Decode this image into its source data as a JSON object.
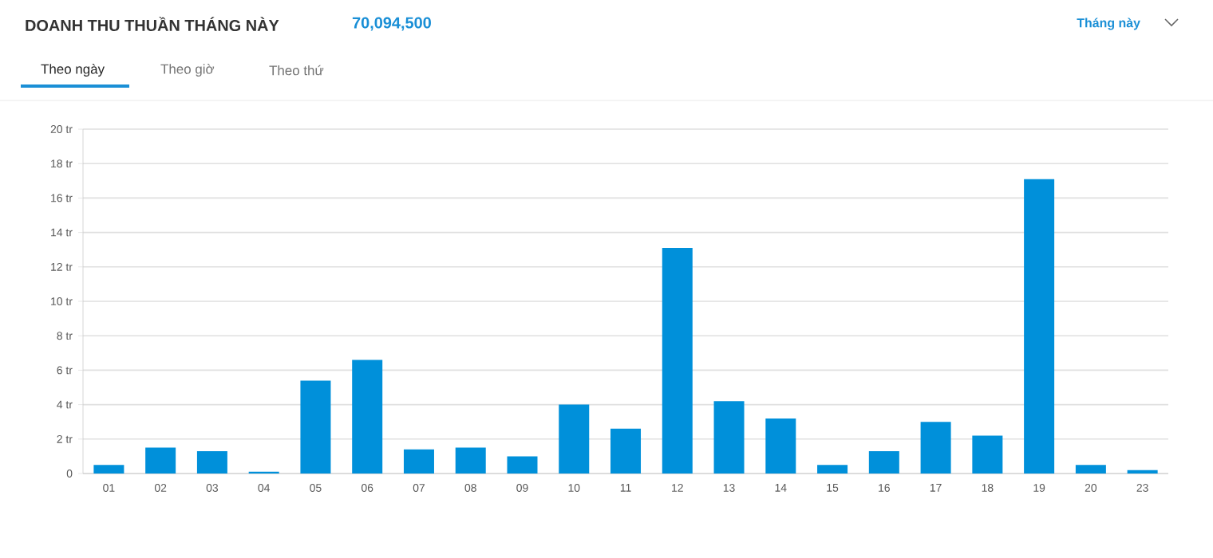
{
  "chart_data": {
    "type": "bar",
    "title": "DOANH THU THUẦN THÁNG NÀY",
    "subtitle": "70,094,500",
    "annotations": [
      "Theo ngày",
      "Theo giờ",
      "Theo thứ",
      "Tháng này"
    ],
    "categories": [
      "01",
      "02",
      "03",
      "04",
      "05",
      "06",
      "07",
      "08",
      "09",
      "10",
      "11",
      "12",
      "13",
      "14",
      "15",
      "16",
      "17",
      "18",
      "19",
      "20",
      "23"
    ],
    "values": [
      0.5,
      1.5,
      1.3,
      0.1,
      5.4,
      6.6,
      1.4,
      1.5,
      1.0,
      4.0,
      2.6,
      13.1,
      4.2,
      3.2,
      0.5,
      1.3,
      3.0,
      2.2,
      17.1,
      0.5,
      0.2
    ],
    "color": "#0090da",
    "ylim": [
      0,
      20
    ],
    "yticks": [
      0,
      {
        "value": 2,
        "label": "2 tr"
      },
      {
        "value": 4,
        "label": "4 tr"
      },
      {
        "value": 6,
        "label": "6 tr"
      },
      {
        "value": 8,
        "label": "8 tr"
      },
      {
        "value": 10,
        "label": "10 tr"
      },
      {
        "value": 12,
        "label": "12 tr"
      },
      {
        "value": 14,
        "label": "14 tr"
      },
      {
        "value": 16,
        "label": "16 tr"
      },
      {
        "value": 18,
        "label": "18 tr"
      },
      {
        "value": 20,
        "label": "20 tr"
      }
    ],
    "grid": "y"
  }
}
